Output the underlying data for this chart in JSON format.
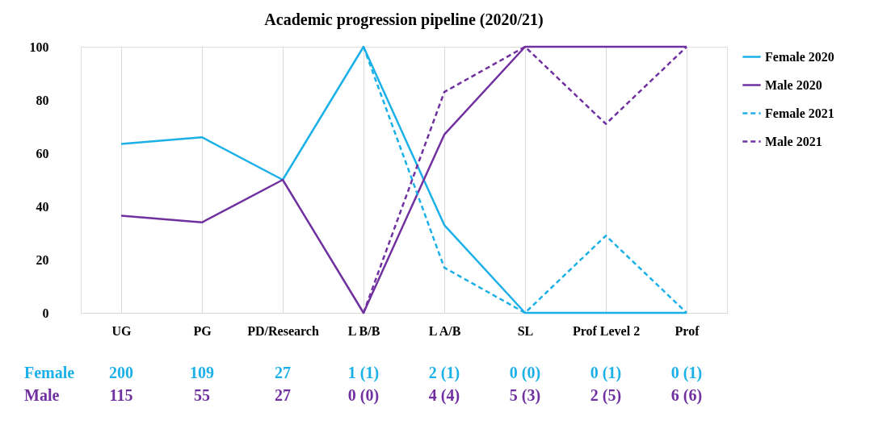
{
  "chart_data": {
    "type": "line",
    "title": "Academic progression pipeline (2020/21)",
    "categories": [
      "UG",
      "PG",
      "PD/Research",
      "L B/B",
      "L A/B",
      "SL",
      "Prof Level 2",
      "Prof"
    ],
    "series": [
      {
        "name": "Female 2020",
        "color": "#1cb0e8",
        "line_style": "solid",
        "values": [
          63.5,
          66,
          50,
          100,
          33,
          0,
          0,
          0
        ]
      },
      {
        "name": "Male 2020",
        "color": "#7030a0",
        "line_style": "solid",
        "values": [
          36.5,
          34,
          50,
          0,
          67,
          100,
          100,
          100
        ]
      },
      {
        "name": "Female 2021",
        "color": "#1cb0e8",
        "line_style": "dashed",
        "values": [
          null,
          null,
          null,
          100,
          17,
          0,
          29,
          0
        ]
      },
      {
        "name": "Male 2021",
        "color": "#7030a0",
        "line_style": "dashed",
        "values": [
          null,
          null,
          null,
          0,
          83,
          100,
          71,
          100
        ]
      }
    ],
    "ylim": [
      0,
      100
    ],
    "yticks": [
      0,
      20,
      40,
      60,
      80,
      100
    ],
    "grid": "x",
    "legend": "right",
    "annotations": [
      "Female",
      "200",
      "109",
      "27",
      "1 (1)",
      "2 (1)",
      "0 (0)",
      "0 (1)",
      "0  (1)",
      "Male",
      "115",
      "55",
      "27",
      "0 (0)",
      "4 (4)",
      "5 (3)",
      "2 (5)",
      "6 (6)"
    ]
  }
}
